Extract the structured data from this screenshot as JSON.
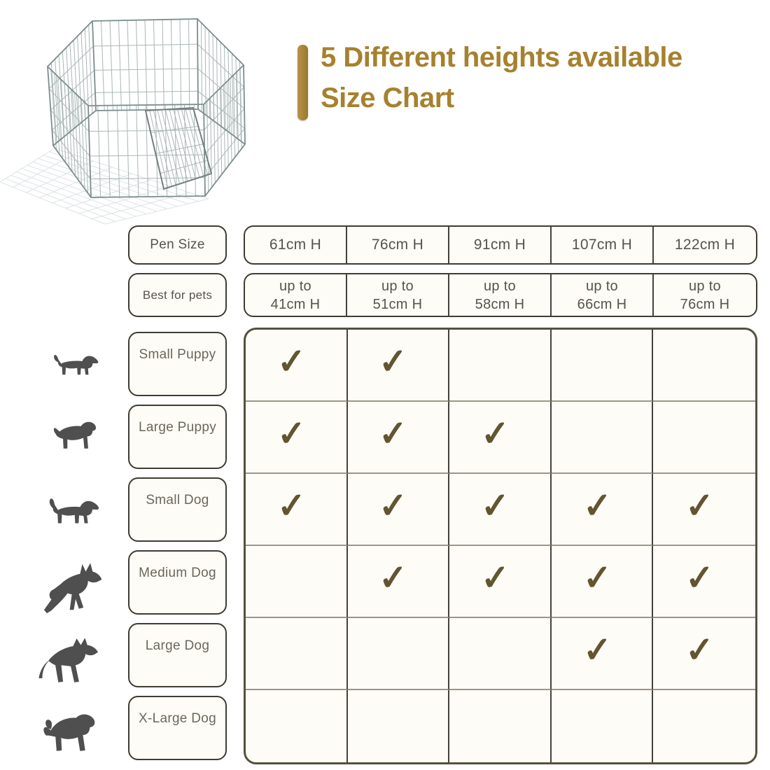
{
  "title": {
    "line1": "5 Different heights available",
    "line2": "Size Chart"
  },
  "colors": {
    "accent_gold": "#a6812e",
    "check_gold": "#62552f",
    "silhouette_gray": "#4f4f4f"
  },
  "chart_data": {
    "type": "table",
    "title": "5 Different heights available",
    "subtitle": "Size Chart",
    "pen_size_label": "Pen Size",
    "best_for_pets_label": "Best for pets",
    "pen_heights": [
      "61cm H",
      "76cm H",
      "91cm H",
      "107cm H",
      "122cm H"
    ],
    "best_for_pets": [
      "up to\n41cm H",
      "up to\n51cm H",
      "up to\n58cm H",
      "up to\n66cm H",
      "up to\n76cm H"
    ],
    "check_glyph": "✓",
    "rows": [
      {
        "label": "Small Puppy",
        "icon": "small-puppy-icon",
        "checks": [
          "✓",
          "✓",
          "",
          "",
          ""
        ]
      },
      {
        "label": "Large Puppy",
        "icon": "large-puppy-icon",
        "checks": [
          "✓",
          "✓",
          "✓",
          "",
          ""
        ]
      },
      {
        "label": "Small Dog",
        "icon": "small-dog-icon",
        "checks": [
          "✓",
          "✓",
          "✓",
          "✓",
          "✓"
        ]
      },
      {
        "label": "Medium Dog",
        "icon": "medium-dog-icon",
        "checks": [
          "",
          "✓",
          "✓",
          "✓",
          "✓"
        ]
      },
      {
        "label": "Large Dog",
        "icon": "large-dog-icon",
        "checks": [
          "",
          "",
          "",
          "✓",
          "✓"
        ]
      },
      {
        "label": "X-Large Dog",
        "icon": "x-large-dog-icon",
        "checks": [
          "",
          "",
          "",
          "",
          ""
        ]
      }
    ]
  }
}
